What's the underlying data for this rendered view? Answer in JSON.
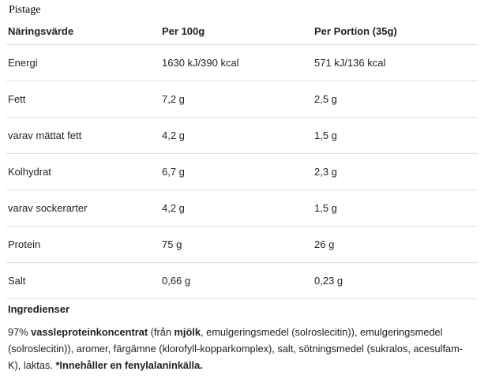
{
  "title": "Pistage",
  "table": {
    "header": [
      "Näringsvärde",
      "Per 100g",
      "Per Portion (35g)"
    ],
    "rows": [
      [
        "Energi",
        "1630 kJ/390 kcal",
        "571 kJ/136 kcal"
      ],
      [
        "Fett",
        "7,2 g",
        "2,5 g"
      ],
      [
        "varav mättat fett",
        "4,2 g",
        "1,5 g"
      ],
      [
        "Kolhydrat",
        "6,7 g",
        "2,3 g"
      ],
      [
        "varav sockerarter",
        "4,2 g",
        "1,5 g"
      ],
      [
        "Protein",
        "75 g",
        "26 g"
      ],
      [
        "Salt",
        "0,66 g",
        "0,23 g"
      ]
    ]
  },
  "ingredients": {
    "heading": "Ingredienser",
    "segments": [
      {
        "text": "97% ",
        "bold": false
      },
      {
        "text": "vassleproteinkoncentrat",
        "bold": true
      },
      {
        "text": " (från ",
        "bold": false
      },
      {
        "text": "mjölk",
        "bold": true
      },
      {
        "text": ", emulgeringsmedel (solroslecitin)), emulgeringsmedel (solroslecitin)), aromer, färgämne (klorofyll-kopparkomplex), salt, sötningsmedel (sukralos, acesulfam-K), laktas. ",
        "bold": false
      },
      {
        "text": "*Innehåller en fenylalaninkälla.",
        "bold": true
      }
    ]
  }
}
